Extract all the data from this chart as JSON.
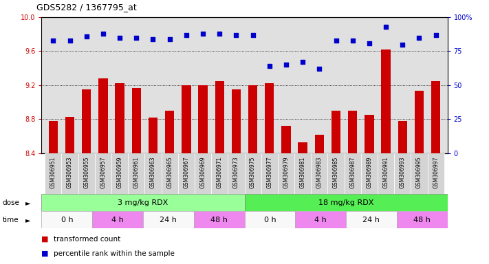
{
  "title": "GDS5282 / 1367795_at",
  "samples": [
    "GSM306951",
    "GSM306953",
    "GSM306955",
    "GSM306957",
    "GSM306959",
    "GSM306961",
    "GSM306963",
    "GSM306965",
    "GSM306967",
    "GSM306969",
    "GSM306971",
    "GSM306973",
    "GSM306975",
    "GSM306977",
    "GSM306979",
    "GSM306981",
    "GSM306983",
    "GSM306985",
    "GSM306987",
    "GSM306989",
    "GSM306991",
    "GSM306993",
    "GSM306995",
    "GSM306997"
  ],
  "bar_values": [
    8.78,
    8.83,
    9.15,
    9.28,
    9.22,
    9.17,
    8.82,
    8.9,
    9.2,
    9.2,
    9.25,
    9.15,
    9.2,
    9.22,
    8.72,
    8.53,
    8.62,
    8.9,
    8.9,
    8.85,
    9.62,
    8.78,
    9.13,
    9.25
  ],
  "percentile_values": [
    83,
    83,
    86,
    88,
    85,
    85,
    84,
    84,
    87,
    88,
    88,
    87,
    87,
    64,
    65,
    67,
    62,
    83,
    83,
    81,
    93,
    80,
    85,
    87
  ],
  "bar_color": "#cc0000",
  "dot_color": "#0000cc",
  "ylim_left": [
    8.4,
    10.0
  ],
  "ylim_right": [
    0,
    100
  ],
  "yticks_left": [
    8.4,
    8.8,
    9.2,
    9.6,
    10.0
  ],
  "yticks_right": [
    0,
    25,
    50,
    75,
    100
  ],
  "grid_values": [
    8.8,
    9.2,
    9.6
  ],
  "dose_groups": [
    {
      "label": "3 mg/kg RDX",
      "start": 0,
      "end": 12,
      "color": "#99ff99"
    },
    {
      "label": "18 mg/kg RDX",
      "start": 12,
      "end": 24,
      "color": "#55ee55"
    }
  ],
  "time_groups": [
    {
      "label": "0 h",
      "start": 0,
      "end": 3,
      "color": "#f8f8f8"
    },
    {
      "label": "4 h",
      "start": 3,
      "end": 6,
      "color": "#ee88ee"
    },
    {
      "label": "24 h",
      "start": 6,
      "end": 9,
      "color": "#f8f8f8"
    },
    {
      "label": "48 h",
      "start": 9,
      "end": 12,
      "color": "#ee88ee"
    },
    {
      "label": "0 h",
      "start": 12,
      "end": 15,
      "color": "#f8f8f8"
    },
    {
      "label": "4 h",
      "start": 15,
      "end": 18,
      "color": "#ee88ee"
    },
    {
      "label": "24 h",
      "start": 18,
      "end": 21,
      "color": "#f8f8f8"
    },
    {
      "label": "48 h",
      "start": 21,
      "end": 24,
      "color": "#ee88ee"
    }
  ],
  "legend_items": [
    {
      "label": "transformed count",
      "color": "#cc0000"
    },
    {
      "label": "percentile rank within the sample",
      "color": "#0000cc"
    }
  ],
  "background_color": "#e0e0e0",
  "tick_label_bg": "#d0d0d0",
  "left_label_color": "#cc0000",
  "right_label_color": "#0000cc"
}
